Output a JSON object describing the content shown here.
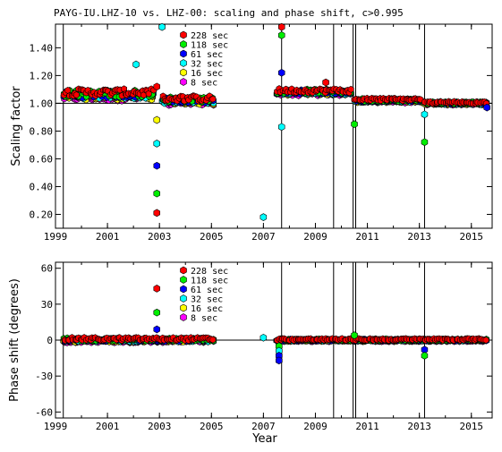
{
  "title": "PAYG-IU.LHZ-10 vs. LHZ-00: scaling and phase shift, c>0.995",
  "colors": {
    "228 sec": "#ff0000",
    "118 sec": "#00ee00",
    "61 sec": "#0000ff",
    "32 sec": "#00ffff",
    "16 sec": "#ffff00",
    "8 sec": "#ff00ff"
  },
  "chart_data": [
    {
      "type": "scatter",
      "ylabel": "Scaling factor",
      "xlabel": "",
      "xlim": [
        1999.0,
        2015.8
      ],
      "ylim": [
        0.1,
        1.57
      ],
      "xticks": [
        "1999",
        "2001",
        "2003",
        "2005",
        "2007",
        "2009",
        "2011",
        "2013",
        "2015"
      ],
      "yticks": [
        "0.20",
        "0.40",
        "0.60",
        "0.80",
        "1.00",
        "1.20",
        "1.40"
      ],
      "reference_line": 1.0,
      "event_lines": [
        1999.3,
        2007.7,
        2009.7,
        2010.45,
        2010.55,
        2013.2
      ],
      "legend": [
        "228 sec",
        "118 sec",
        "61 sec",
        "32 sec",
        "16 sec",
        "8 sec"
      ],
      "outliers": [
        {
          "series": "32 sec",
          "x": 2002.1,
          "y": 1.28
        },
        {
          "series": "32 sec",
          "x": 2003.1,
          "y": 1.55
        },
        {
          "series": "228 sec",
          "x": 2002.9,
          "y": 1.12
        },
        {
          "series": "16 sec",
          "x": 2002.9,
          "y": 0.88
        },
        {
          "series": "32 sec",
          "x": 2002.9,
          "y": 0.71
        },
        {
          "series": "61 sec",
          "x": 2002.9,
          "y": 0.55
        },
        {
          "series": "118 sec",
          "x": 2002.9,
          "y": 0.35
        },
        {
          "series": "228 sec",
          "x": 2002.9,
          "y": 0.21
        },
        {
          "series": "32 sec",
          "x": 2007.0,
          "y": 0.18
        },
        {
          "series": "228 sec",
          "x": 2007.7,
          "y": 1.55
        },
        {
          "series": "118 sec",
          "x": 2007.7,
          "y": 1.49
        },
        {
          "series": "61 sec",
          "x": 2007.7,
          "y": 1.22
        },
        {
          "series": "32 sec",
          "x": 2007.7,
          "y": 0.83
        },
        {
          "series": "118 sec",
          "x": 2010.5,
          "y": 0.85
        },
        {
          "series": "32 sec",
          "x": 2013.2,
          "y": 0.92
        },
        {
          "series": "118 sec",
          "x": 2013.2,
          "y": 0.72
        },
        {
          "series": "228 sec",
          "x": 2009.4,
          "y": 1.15
        },
        {
          "series": "61 sec",
          "x": 2015.6,
          "y": 0.97
        }
      ],
      "segments": [
        {
          "x0": 1999.3,
          "x1": 2002.8,
          "y": 1.06,
          "spread": 0.05
        },
        {
          "x0": 2003.1,
          "x1": 2005.1,
          "y": 1.02,
          "spread": 0.04
        },
        {
          "x0": 2007.5,
          "x1": 2010.4,
          "y": 1.08,
          "spread": 0.03
        },
        {
          "x0": 2010.5,
          "x1": 2013.1,
          "y": 1.02,
          "spread": 0.02
        },
        {
          "x0": 2013.2,
          "x1": 2015.6,
          "y": 1.0,
          "spread": 0.015
        }
      ]
    },
    {
      "type": "scatter",
      "ylabel": "Phase shift (degrees)",
      "xlabel": "Year",
      "xlim": [
        1999.0,
        2015.8
      ],
      "ylim": [
        -65,
        65
      ],
      "xticks": [
        "1999",
        "2001",
        "2003",
        "2005",
        "2007",
        "2009",
        "2011",
        "2013",
        "2015"
      ],
      "yticks": [
        "-60",
        "-30",
        "0",
        "30",
        "60"
      ],
      "reference_line": 0,
      "event_lines": [
        1999.3,
        2007.7,
        2009.7,
        2010.45,
        2010.55,
        2013.2
      ],
      "legend": [
        "228 sec",
        "118 sec",
        "61 sec",
        "32 sec",
        "16 sec",
        "8 sec"
      ],
      "outliers": [
        {
          "series": "228 sec",
          "x": 2002.9,
          "y": 43
        },
        {
          "series": "118 sec",
          "x": 2002.9,
          "y": 23
        },
        {
          "series": "61 sec",
          "x": 2002.9,
          "y": 9
        },
        {
          "series": "32 sec",
          "x": 2007.0,
          "y": 2
        },
        {
          "series": "118 sec",
          "x": 2007.6,
          "y": -5
        },
        {
          "series": "32 sec",
          "x": 2007.6,
          "y": -9
        },
        {
          "series": "61 sec",
          "x": 2007.6,
          "y": -13
        },
        {
          "series": "61 sec",
          "x": 2007.6,
          "y": -17
        },
        {
          "series": "61 sec",
          "x": 2013.2,
          "y": -8
        },
        {
          "series": "118 sec",
          "x": 2013.2,
          "y": -13
        },
        {
          "series": "118 sec",
          "x": 2010.5,
          "y": 4
        }
      ],
      "segments": [
        {
          "x0": 1999.3,
          "x1": 2005.1,
          "y": 0,
          "spread": 2.5
        },
        {
          "x0": 2007.5,
          "x1": 2015.6,
          "y": 0,
          "spread": 1.5
        }
      ]
    }
  ]
}
